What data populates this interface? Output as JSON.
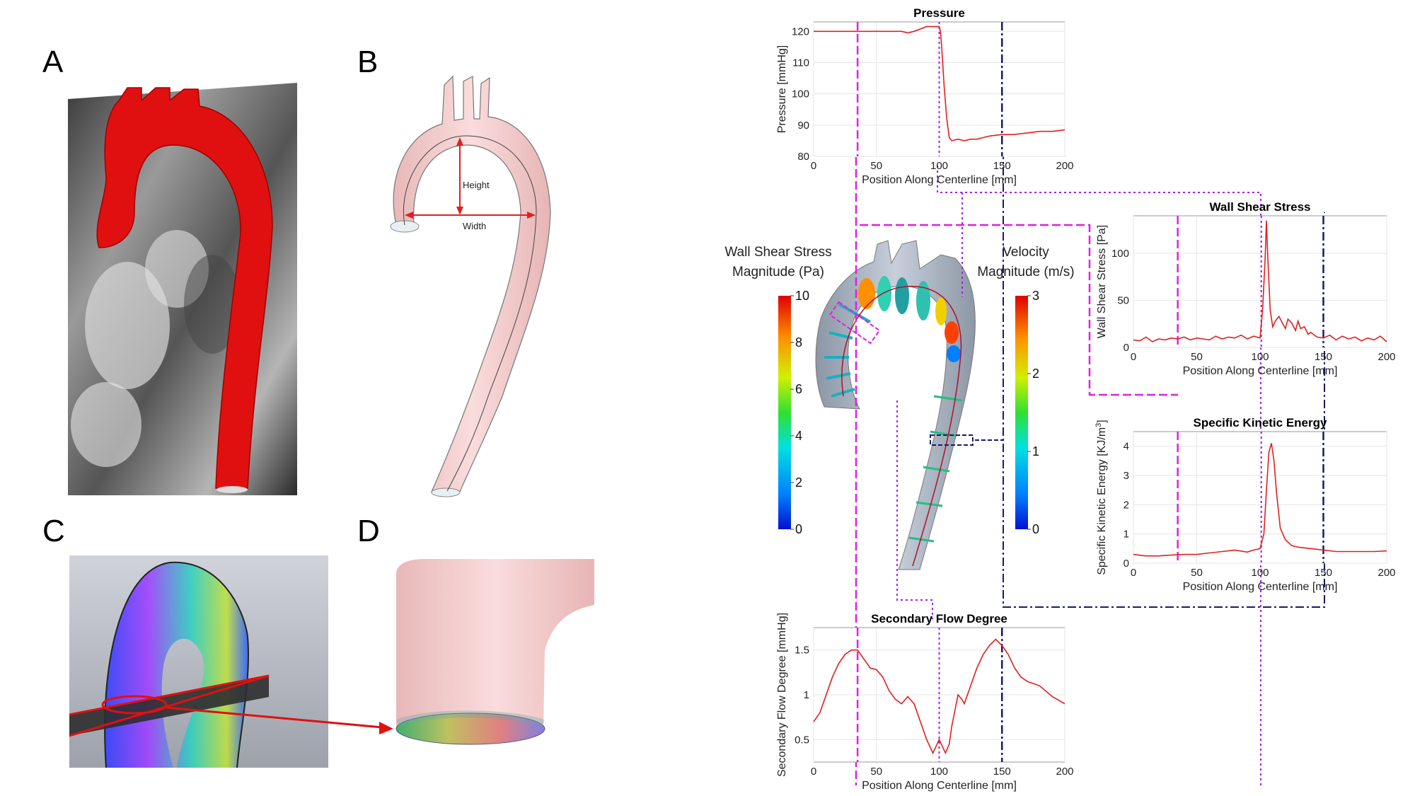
{
  "panels": {
    "a": "A",
    "b": "B",
    "c": "C",
    "d": "D"
  },
  "panel_b": {
    "height_label": "Height",
    "width_label": "Width"
  },
  "colorbars": {
    "wss": {
      "title_line1": "Wall Shear Stress",
      "title_line2": "Magnitude (Pa)",
      "ticks": [
        "10",
        "8",
        "6",
        "4",
        "2",
        "0"
      ]
    },
    "vel": {
      "title_line1": "Velocity",
      "title_line2": "Magnitude (m/s)",
      "ticks": [
        "3",
        "2",
        "1",
        "0"
      ]
    }
  },
  "colors": {
    "magenta": "#e020e0",
    "purple": "#a020f0",
    "navy": "#1a1a6e",
    "curve": "#e02020",
    "aorta_red": "#e01010",
    "skin": "#f7d2d2"
  },
  "chart_data": [
    {
      "id": "pressure",
      "type": "line",
      "title": "Pressure",
      "xlabel": "Position Along Centerline [mm]",
      "ylabel": "Pressure [mmHg]",
      "xlim": [
        0,
        200
      ],
      "ylim": [
        80,
        123
      ],
      "xticks": [
        "0",
        "50",
        "100",
        "150",
        "200"
      ],
      "yticks": [
        "80",
        "90",
        "100",
        "110",
        "120"
      ],
      "grid": true,
      "x": [
        0,
        20,
        40,
        60,
        70,
        75,
        80,
        90,
        100,
        101,
        102,
        104,
        106,
        108,
        110,
        115,
        120,
        125,
        130,
        140,
        150,
        160,
        170,
        180,
        190,
        200
      ],
      "y": [
        120,
        120,
        120,
        120,
        120,
        119.5,
        120,
        121.5,
        121.5,
        120,
        115,
        102,
        92,
        86,
        85,
        85.5,
        85,
        85.5,
        85.5,
        86.5,
        87,
        87,
        87.5,
        88,
        88,
        88.5
      ]
    },
    {
      "id": "wss",
      "type": "line",
      "title": "Wall Shear Stress",
      "xlabel": "Position Along Centerline [mm]",
      "ylabel": "Wall Shear Stress [Pa]",
      "xlim": [
        0,
        200
      ],
      "ylim": [
        0,
        140
      ],
      "xticks": [
        "0",
        "50",
        "100",
        "150",
        "200"
      ],
      "yticks": [
        "0",
        "50",
        "100"
      ],
      "grid": true,
      "x": [
        0,
        5,
        10,
        15,
        20,
        25,
        30,
        35,
        40,
        45,
        50,
        55,
        60,
        65,
        70,
        75,
        80,
        85,
        90,
        95,
        100,
        102,
        104,
        105,
        106,
        108,
        110,
        112,
        115,
        118,
        120,
        122,
        125,
        128,
        130,
        132,
        135,
        138,
        140,
        145,
        150,
        155,
        160,
        165,
        170,
        175,
        180,
        185,
        190,
        195,
        200
      ],
      "y": [
        8,
        7,
        11,
        6,
        9,
        8,
        10,
        9,
        11,
        8,
        10,
        9,
        8,
        12,
        9,
        11,
        10,
        13,
        9,
        12,
        10,
        40,
        95,
        135,
        100,
        40,
        22,
        28,
        33,
        25,
        20,
        30,
        26,
        18,
        28,
        20,
        22,
        14,
        16,
        11,
        10,
        13,
        8,
        12,
        9,
        11,
        7,
        10,
        8,
        12,
        6
      ]
    },
    {
      "id": "ske",
      "type": "line",
      "title": "Specific Kinetic Energy",
      "xlabel": "Position Along Centerline [mm]",
      "ylabel": "Specific Kinetic Energy [KJ/m",
      "ylabel_sup": "3",
      "ylabel_end": "]",
      "xlim": [
        0,
        200
      ],
      "ylim": [
        0,
        4.5
      ],
      "xticks": [
        "0",
        "50",
        "100",
        "150",
        "200"
      ],
      "yticks": [
        "0",
        "1",
        "2",
        "3",
        "4"
      ],
      "grid": true,
      "x": [
        0,
        10,
        20,
        30,
        40,
        50,
        60,
        70,
        80,
        90,
        95,
        100,
        103,
        105,
        107,
        109,
        111,
        113,
        116,
        120,
        125,
        130,
        140,
        150,
        160,
        170,
        180,
        190,
        200
      ],
      "y": [
        0.3,
        0.25,
        0.25,
        0.28,
        0.3,
        0.3,
        0.35,
        0.4,
        0.45,
        0.38,
        0.45,
        0.5,
        1.0,
        2.5,
        3.8,
        4.1,
        3.5,
        2.4,
        1.2,
        0.8,
        0.6,
        0.55,
        0.5,
        0.45,
        0.4,
        0.4,
        0.4,
        0.4,
        0.42
      ]
    },
    {
      "id": "sfd",
      "type": "line",
      "title": "Secondary Flow Degree",
      "xlabel": "Position Along Centerline [mm]",
      "ylabel": "Secondary Flow Degree [mmHg]",
      "xlim": [
        0,
        200
      ],
      "ylim": [
        0.25,
        1.75
      ],
      "xticks": [
        "0",
        "50",
        "100",
        "150",
        "200"
      ],
      "yticks": [
        "0.5",
        "1",
        "1.5"
      ],
      "grid": true,
      "x": [
        0,
        5,
        10,
        15,
        20,
        25,
        30,
        35,
        40,
        45,
        50,
        55,
        60,
        65,
        70,
        75,
        80,
        85,
        90,
        95,
        100,
        105,
        108,
        110,
        115,
        118,
        120,
        125,
        130,
        135,
        140,
        145,
        150,
        155,
        160,
        165,
        170,
        180,
        190,
        200
      ],
      "y": [
        0.7,
        0.8,
        1.0,
        1.2,
        1.35,
        1.45,
        1.5,
        1.5,
        1.4,
        1.3,
        1.28,
        1.2,
        1.05,
        0.95,
        0.9,
        0.98,
        0.9,
        0.7,
        0.5,
        0.35,
        0.5,
        0.35,
        0.45,
        0.65,
        1.0,
        0.95,
        0.9,
        1.1,
        1.3,
        1.45,
        1.55,
        1.62,
        1.55,
        1.45,
        1.3,
        1.2,
        1.15,
        1.1,
        0.98,
        0.9
      ]
    }
  ]
}
